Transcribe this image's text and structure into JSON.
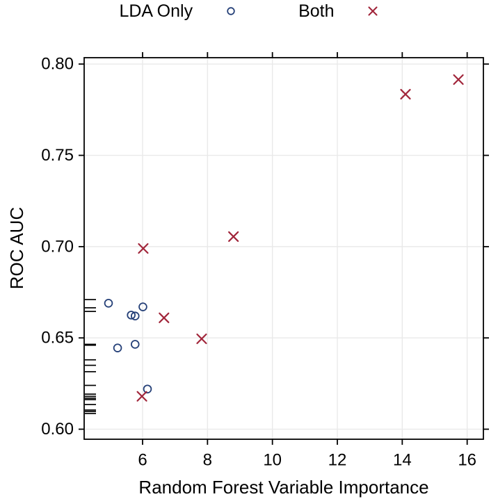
{
  "figure": {
    "legend": {
      "items": [
        {
          "label": "LDA Only",
          "marker": "circle"
        },
        {
          "label": "Both",
          "marker": "x"
        }
      ]
    }
  },
  "chart_data": {
    "type": "scatter",
    "title": "",
    "xlabel": "Random Forest Variable Importance",
    "ylabel": "ROC AUC",
    "xlim": [
      4.2,
      16.5
    ],
    "ylim": [
      0.5945,
      0.8035
    ],
    "x_ticks": [
      6,
      8,
      10,
      12,
      14,
      16
    ],
    "x_tick_labels": [
      "6",
      "8",
      "10",
      "12",
      "14",
      "16"
    ],
    "y_ticks": [
      0.6,
      0.65,
      0.7,
      0.75,
      0.8
    ],
    "y_tick_labels": [
      "0.60",
      "0.65",
      "0.70",
      "0.75",
      "0.80"
    ],
    "grid": true,
    "legend_position": "top",
    "series": [
      {
        "name": "LDA Only",
        "marker": "circle",
        "color": "#254078",
        "points": [
          [
            4.95,
            0.669
          ],
          [
            6.01,
            0.667
          ],
          [
            5.65,
            0.6625
          ],
          [
            5.77,
            0.662
          ],
          [
            5.23,
            0.6445
          ],
          [
            5.77,
            0.6465
          ],
          [
            6.15,
            0.622
          ]
        ]
      },
      {
        "name": "Both",
        "marker": "x",
        "color": "#A1253A",
        "points": [
          [
            6.02,
            0.699
          ],
          [
            8.8,
            0.7055
          ],
          [
            6.66,
            0.661
          ],
          [
            7.82,
            0.6495
          ],
          [
            5.98,
            0.618
          ],
          [
            14.1,
            0.7835
          ],
          [
            15.73,
            0.7915
          ]
        ]
      }
    ],
    "rug": {
      "side": "left",
      "color": "#000000",
      "y_values": [
        0.671,
        0.6665,
        0.6645,
        0.6465,
        0.646,
        0.638,
        0.635,
        0.6315,
        0.624,
        0.6192,
        0.618,
        0.617,
        0.6162,
        0.6135,
        0.6105,
        0.6097,
        0.6086
      ]
    }
  },
  "colors": {
    "blue": "#254078",
    "red": "#A1253A",
    "grid": "#E9E9E9",
    "axis": "#000000"
  }
}
